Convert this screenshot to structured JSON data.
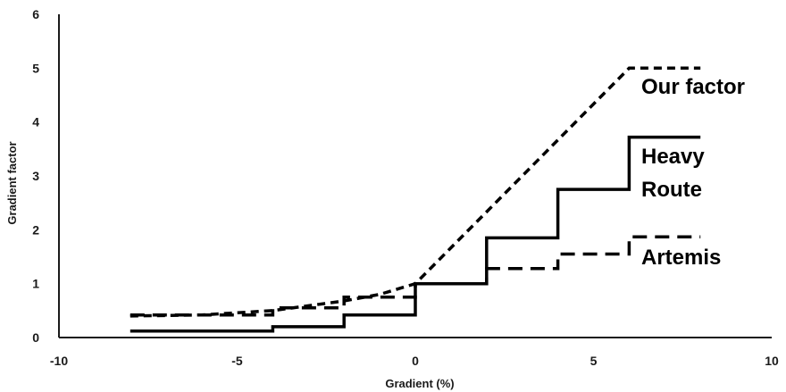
{
  "chart_data": {
    "type": "line",
    "xlabel": "Gradient (%)",
    "ylabel": "Gradient factor",
    "xlim": [
      -10,
      10
    ],
    "ylim": [
      0,
      6
    ],
    "xticks": [
      -10,
      -5,
      0,
      5,
      10
    ],
    "yticks": [
      0,
      1,
      2,
      3,
      4,
      5,
      6
    ],
    "grid": false,
    "legend": "none",
    "series": [
      {
        "name": "Our factor",
        "style": "dashed",
        "color": "#000000",
        "label_lines": [
          "Our factor"
        ],
        "points": [
          [
            -8,
            0.4
          ],
          [
            -6,
            0.42
          ],
          [
            -4,
            0.5
          ],
          [
            -2,
            0.68
          ],
          [
            -1,
            0.8
          ],
          [
            0,
            1.0
          ],
          [
            6,
            5.0
          ],
          [
            8,
            5.0
          ]
        ]
      },
      {
        "name": "Heavy Route",
        "style": "solid",
        "color": "#000000",
        "label_lines": [
          "Heavy",
          "Route"
        ],
        "points": [
          [
            -8,
            0.12
          ],
          [
            -4,
            0.12
          ],
          [
            -4,
            0.2
          ],
          [
            -2,
            0.2
          ],
          [
            -2,
            0.42
          ],
          [
            0,
            0.42
          ],
          [
            0,
            1.0
          ],
          [
            2,
            1.0
          ],
          [
            2,
            1.85
          ],
          [
            4,
            1.85
          ],
          [
            4,
            2.75
          ],
          [
            6,
            2.75
          ],
          [
            6,
            3.72
          ],
          [
            8,
            3.72
          ]
        ]
      },
      {
        "name": "Artemis",
        "style": "dashed",
        "color": "#000000",
        "label_lines": [
          "Artemis"
        ],
        "points": [
          [
            -8,
            0.42
          ],
          [
            -4,
            0.42
          ],
          [
            -4,
            0.55
          ],
          [
            -2,
            0.55
          ],
          [
            -2,
            0.75
          ],
          [
            0,
            0.75
          ],
          [
            0,
            1.0
          ],
          [
            2,
            1.0
          ],
          [
            2,
            1.28
          ],
          [
            4,
            1.28
          ],
          [
            4,
            1.55
          ],
          [
            6,
            1.55
          ],
          [
            6,
            1.87
          ],
          [
            8,
            1.87
          ]
        ]
      }
    ]
  }
}
